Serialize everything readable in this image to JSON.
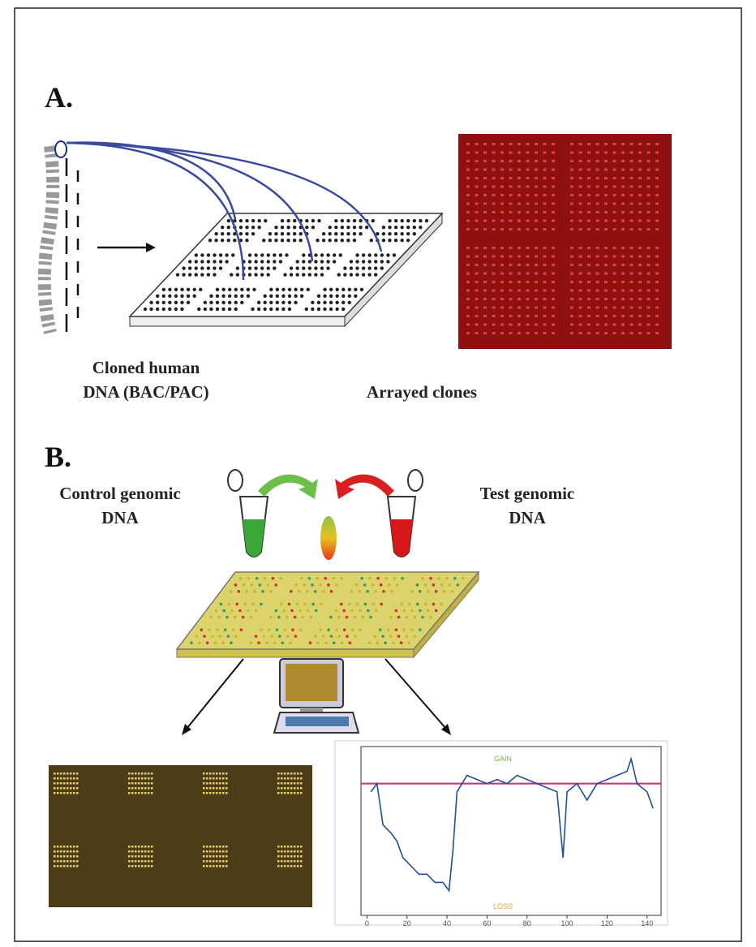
{
  "panel_a": {
    "label": "A.",
    "left_caption": [
      "Cloned human",
      "DNA (BAC/PAC)"
    ],
    "right_caption": "Arrayed clones"
  },
  "panel_b": {
    "label": "B.",
    "control_label": [
      "Control genomic",
      "DNA"
    ],
    "test_label": [
      "Test genomic",
      "DNA"
    ],
    "chart_data": {
      "type": "line",
      "annotations": [
        "GAIN",
        "LOSS"
      ],
      "x": [
        2,
        5,
        8,
        12,
        15,
        18,
        22,
        26,
        30,
        34,
        38,
        41,
        43,
        45,
        50,
        55,
        60,
        65,
        70,
        75,
        80,
        85,
        90,
        95,
        98,
        100,
        105,
        110,
        115,
        120,
        125,
        130,
        132,
        135,
        140,
        143
      ],
      "series": [
        {
          "color": "#1f4e9c",
          "values": [
            -0.1,
            0,
            -0.5,
            -0.6,
            -0.7,
            -0.9,
            -1.0,
            -1.1,
            -1.1,
            -1.2,
            -1.2,
            -1.3,
            -0.8,
            -0.1,
            0.1,
            0.05,
            0,
            0.05,
            0,
            0.1,
            0.05,
            0,
            -0.05,
            -0.1,
            -0.9,
            -0.1,
            0,
            -0.2,
            0,
            0.05,
            0.1,
            0.15,
            0.3,
            0,
            -0.1,
            -0.3
          ]
        }
      ],
      "reference_line": {
        "value": 0,
        "color": "#c0307a"
      },
      "xlim": [
        -3,
        147
      ],
      "ylim": [
        -1.6,
        0.45
      ],
      "xticks": [
        0,
        20,
        40,
        60,
        80,
        100,
        120,
        140
      ]
    }
  }
}
